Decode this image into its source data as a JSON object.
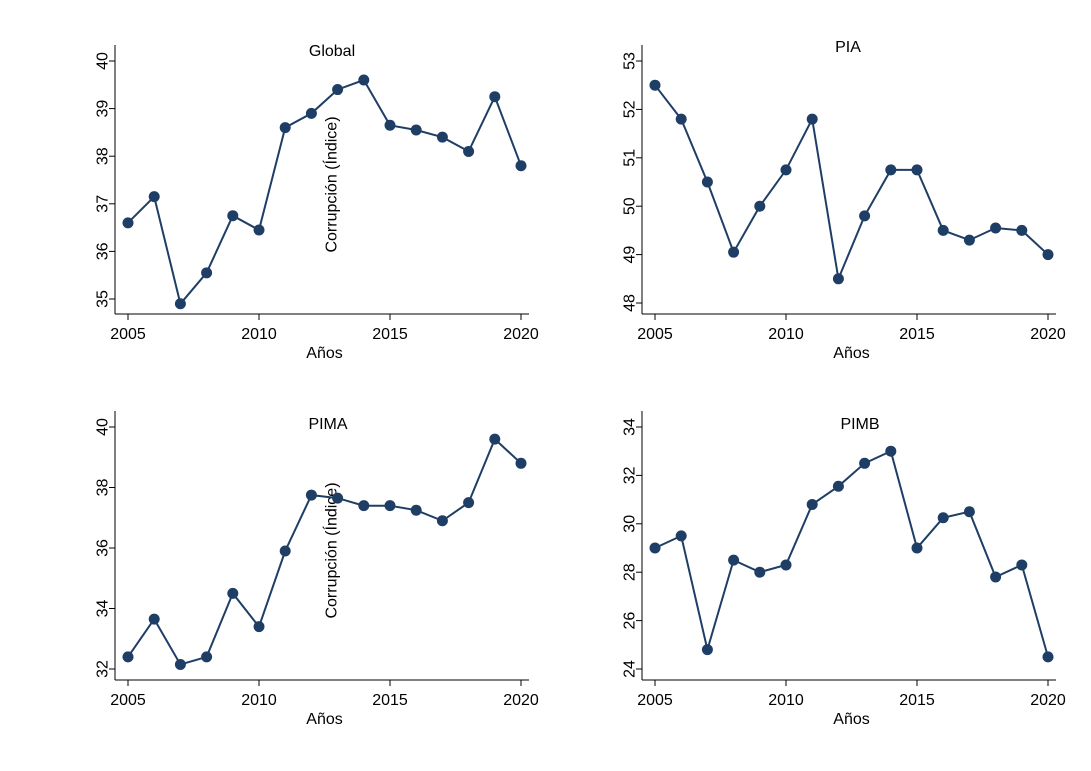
{
  "chart_data": [
    {
      "type": "line",
      "title": "Global",
      "xlabel": "Años",
      "ylabel": "Corrupción (Índice)",
      "xticks": [
        2005,
        2010,
        2015,
        2020
      ],
      "yticks": [
        35,
        36,
        37,
        38,
        39,
        40
      ],
      "xlim": [
        2005,
        2020
      ],
      "ylim": [
        35,
        40
      ],
      "grid": false,
      "color": "#1f3e66",
      "x": [
        2005,
        2006,
        2007,
        2008,
        2009,
        2010,
        2011,
        2012,
        2013,
        2014,
        2015,
        2016,
        2017,
        2018,
        2019,
        2020
      ],
      "values": [
        36.6,
        37.15,
        34.9,
        35.55,
        36.75,
        36.45,
        38.6,
        38.9,
        39.4,
        39.6,
        38.65,
        38.55,
        38.4,
        38.1,
        39.25,
        37.8
      ]
    },
    {
      "type": "line",
      "title": "PIA",
      "xlabel": "Años",
      "ylabel": "",
      "xticks": [
        2005,
        2010,
        2015,
        2020
      ],
      "yticks": [
        48,
        49,
        50,
        51,
        52,
        53
      ],
      "xlim": [
        2005,
        2020
      ],
      "ylim": [
        48,
        53
      ],
      "grid": false,
      "color": "#1f3e66",
      "x": [
        2005,
        2006,
        2007,
        2008,
        2009,
        2010,
        2011,
        2012,
        2013,
        2014,
        2015,
        2016,
        2017,
        2018,
        2019,
        2020
      ],
      "values": [
        52.5,
        51.8,
        50.5,
        49.05,
        50.0,
        50.75,
        51.8,
        48.5,
        49.8,
        50.75,
        50.75,
        49.5,
        49.3,
        49.55,
        49.5,
        49.0
      ]
    },
    {
      "type": "line",
      "title": "PIMA",
      "xlabel": "Años",
      "ylabel": "Corrupción (Índice)",
      "xticks": [
        2005,
        2010,
        2015,
        2020
      ],
      "yticks": [
        32,
        34,
        36,
        38,
        40
      ],
      "xlim": [
        2005,
        2020
      ],
      "ylim": [
        32,
        40
      ],
      "grid": false,
      "color": "#1f3e66",
      "x": [
        2005,
        2006,
        2007,
        2008,
        2009,
        2010,
        2011,
        2012,
        2013,
        2014,
        2015,
        2016,
        2017,
        2018,
        2019,
        2020
      ],
      "values": [
        32.4,
        33.65,
        32.15,
        32.4,
        34.5,
        33.4,
        35.9,
        37.75,
        37.65,
        37.4,
        37.4,
        37.25,
        36.9,
        37.5,
        39.6,
        38.8
      ]
    },
    {
      "type": "line",
      "title": "PIMB",
      "xlabel": "Años",
      "ylabel": "",
      "xticks": [
        2005,
        2010,
        2015,
        2020
      ],
      "yticks": [
        24,
        26,
        28,
        30,
        32,
        34
      ],
      "xlim": [
        2005,
        2020
      ],
      "ylim": [
        24,
        34
      ],
      "grid": false,
      "color": "#1f3e66",
      "x": [
        2005,
        2006,
        2007,
        2008,
        2009,
        2010,
        2011,
        2012,
        2013,
        2014,
        2015,
        2016,
        2017,
        2018,
        2019,
        2020
      ],
      "values": [
        29.0,
        29.5,
        24.8,
        28.5,
        28.0,
        28.3,
        30.8,
        31.55,
        32.5,
        33.0,
        29.0,
        30.25,
        30.5,
        27.8,
        28.3,
        24.5
      ]
    }
  ]
}
